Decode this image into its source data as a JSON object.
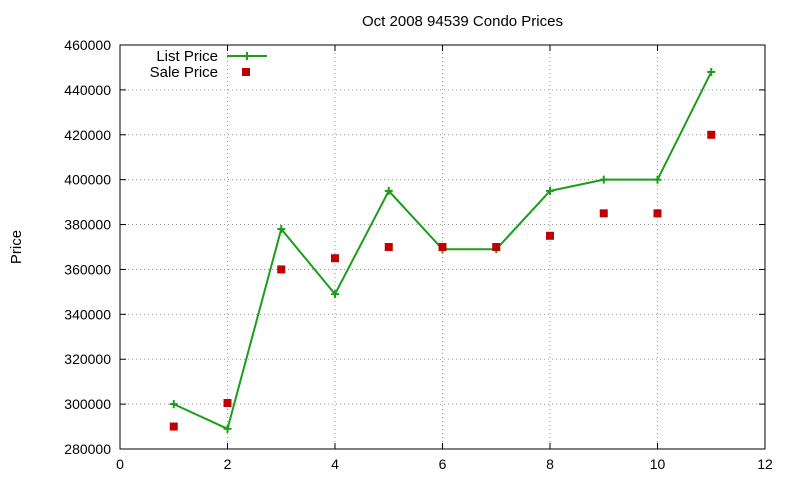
{
  "chart_data": {
    "type": "line",
    "title": "Oct 2008 94539 Condo Prices",
    "xlabel": "",
    "ylabel": "Price",
    "xlim": [
      0,
      12
    ],
    "ylim": [
      280000,
      460000
    ],
    "x_ticks": [
      0,
      2,
      4,
      6,
      8,
      10,
      12
    ],
    "y_ticks": [
      280000,
      300000,
      320000,
      340000,
      360000,
      380000,
      400000,
      420000,
      440000,
      460000
    ],
    "grid": true,
    "legend_position": "top-left",
    "series": [
      {
        "name": "List Price",
        "style": "line+cross",
        "color": "#1a9e1a",
        "x": [
          1,
          2,
          3,
          4,
          5,
          6,
          7,
          8,
          9,
          10,
          11
        ],
        "y": [
          300000,
          289000,
          378000,
          349000,
          395000,
          369000,
          369000,
          395000,
          400000,
          400000,
          448000
        ]
      },
      {
        "name": "Sale Price",
        "style": "square",
        "color": "#c00000",
        "x": [
          1,
          2,
          3,
          4,
          5,
          6,
          7,
          8,
          9,
          10,
          11
        ],
        "y": [
          290000,
          300500,
          360000,
          365000,
          370000,
          370000,
          370000,
          375000,
          385000,
          385000,
          420000
        ]
      }
    ]
  }
}
